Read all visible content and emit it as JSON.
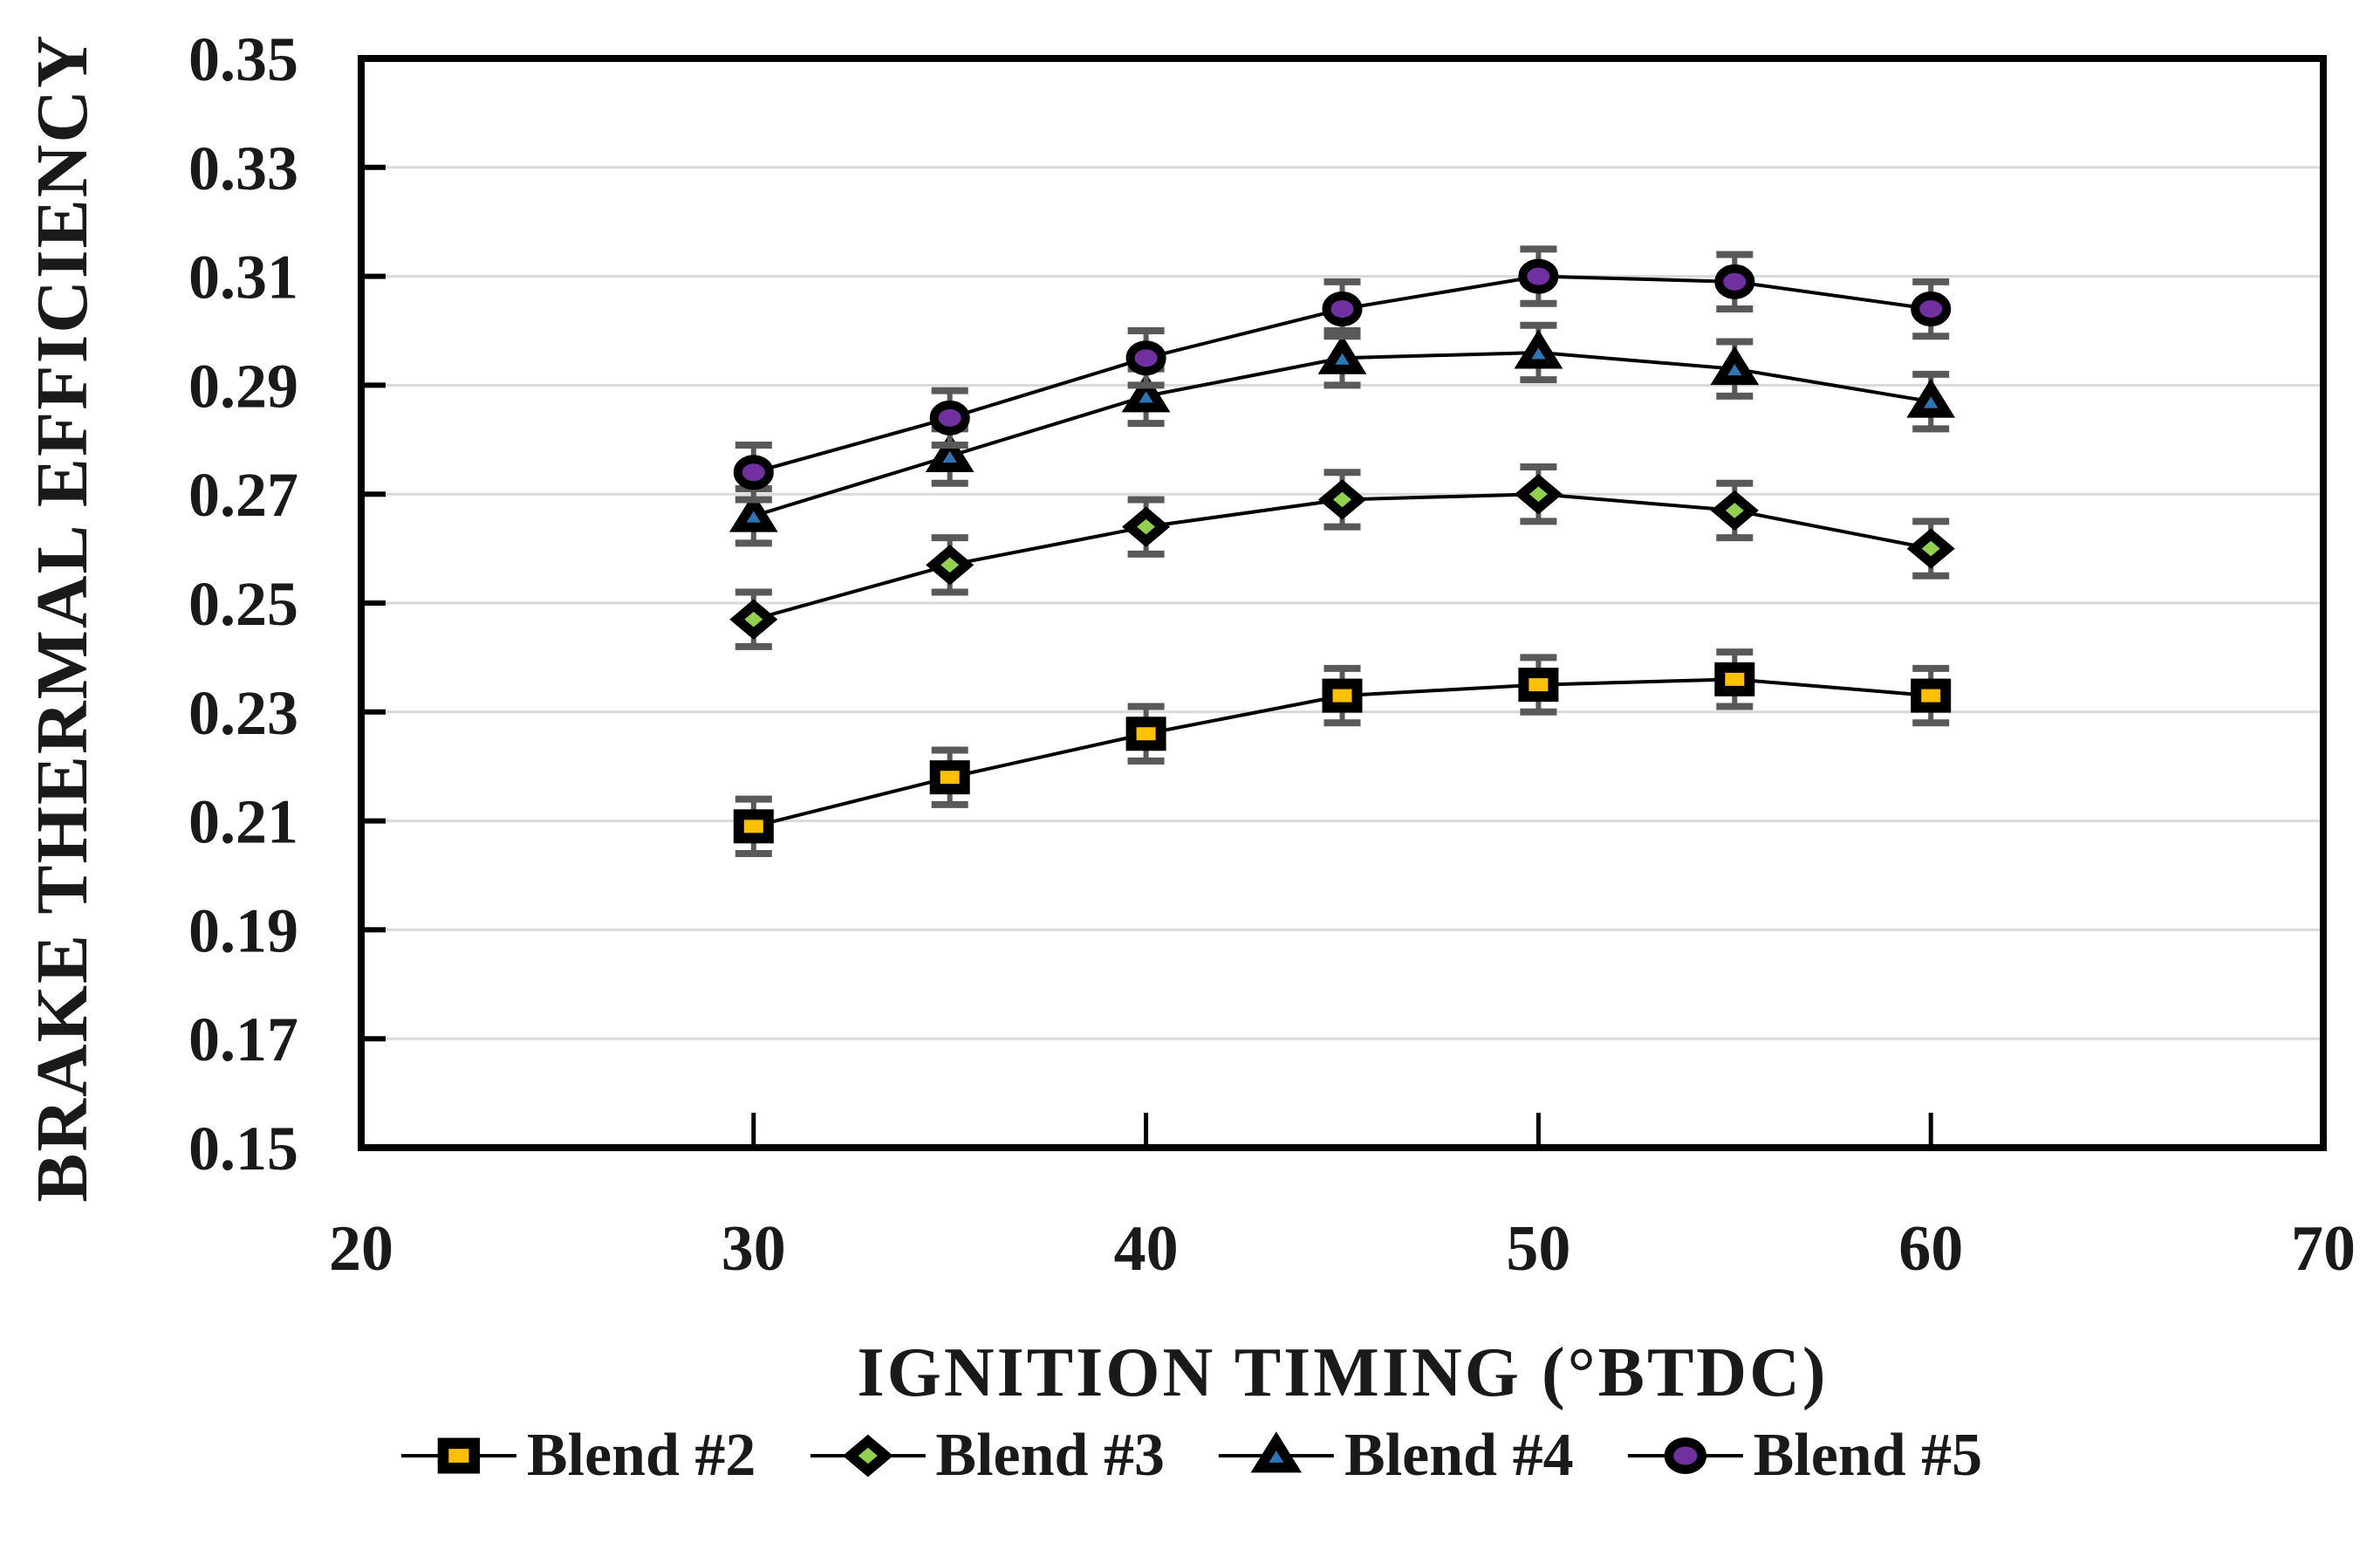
{
  "figure": {
    "background": "#ffffff"
  },
  "chart_data": {
    "type": "line",
    "title": "",
    "xlabel": "IGNITION TIMING (°BTDC)",
    "ylabel": "BRAKE THERMAL EFFICIENCY",
    "xlim": [
      20,
      70
    ],
    "ylim": [
      0.15,
      0.35
    ],
    "xticks": [
      20,
      30,
      40,
      50,
      60,
      70
    ],
    "xtick_labels": [
      "20",
      "30",
      "40",
      "50",
      "60",
      "70"
    ],
    "yticks": [
      0.15,
      0.17,
      0.19,
      0.21,
      0.23,
      0.25,
      0.27,
      0.29,
      0.31,
      0.33,
      0.35
    ],
    "ytick_labels": [
      "0.15",
      "0.17",
      "0.19",
      "0.21",
      "0.23",
      "0.25",
      "0.27",
      "0.29",
      "0.31",
      "0.33",
      "0.35"
    ],
    "grid": "horizontal-only",
    "x": [
      30,
      35,
      40,
      45,
      50,
      55,
      60
    ],
    "error_bar": 0.005,
    "series": [
      {
        "name": "Blend #2",
        "marker": "square",
        "color": "#FFC000",
        "values": [
          0.209,
          0.218,
          0.226,
          0.233,
          0.235,
          0.236,
          0.233
        ]
      },
      {
        "name": "Blend #3",
        "marker": "diamond",
        "color": "#92D050",
        "values": [
          0.247,
          0.257,
          0.264,
          0.269,
          0.27,
          0.267,
          0.26
        ]
      },
      {
        "name": "Blend #4",
        "marker": "triangle",
        "color": "#2E75B6",
        "values": [
          0.266,
          0.277,
          0.288,
          0.295,
          0.296,
          0.293,
          0.287
        ]
      },
      {
        "name": "Blend #5",
        "marker": "circle",
        "color": "#7030A0",
        "values": [
          0.274,
          0.284,
          0.295,
          0.304,
          0.31,
          0.309,
          0.304
        ]
      }
    ],
    "legend_position": "bottom",
    "colors": {
      "line": "#000000",
      "axis": "#000000",
      "gridline": "#D9D9D9",
      "error_bar": "#595959",
      "tick": "#000000"
    }
  }
}
